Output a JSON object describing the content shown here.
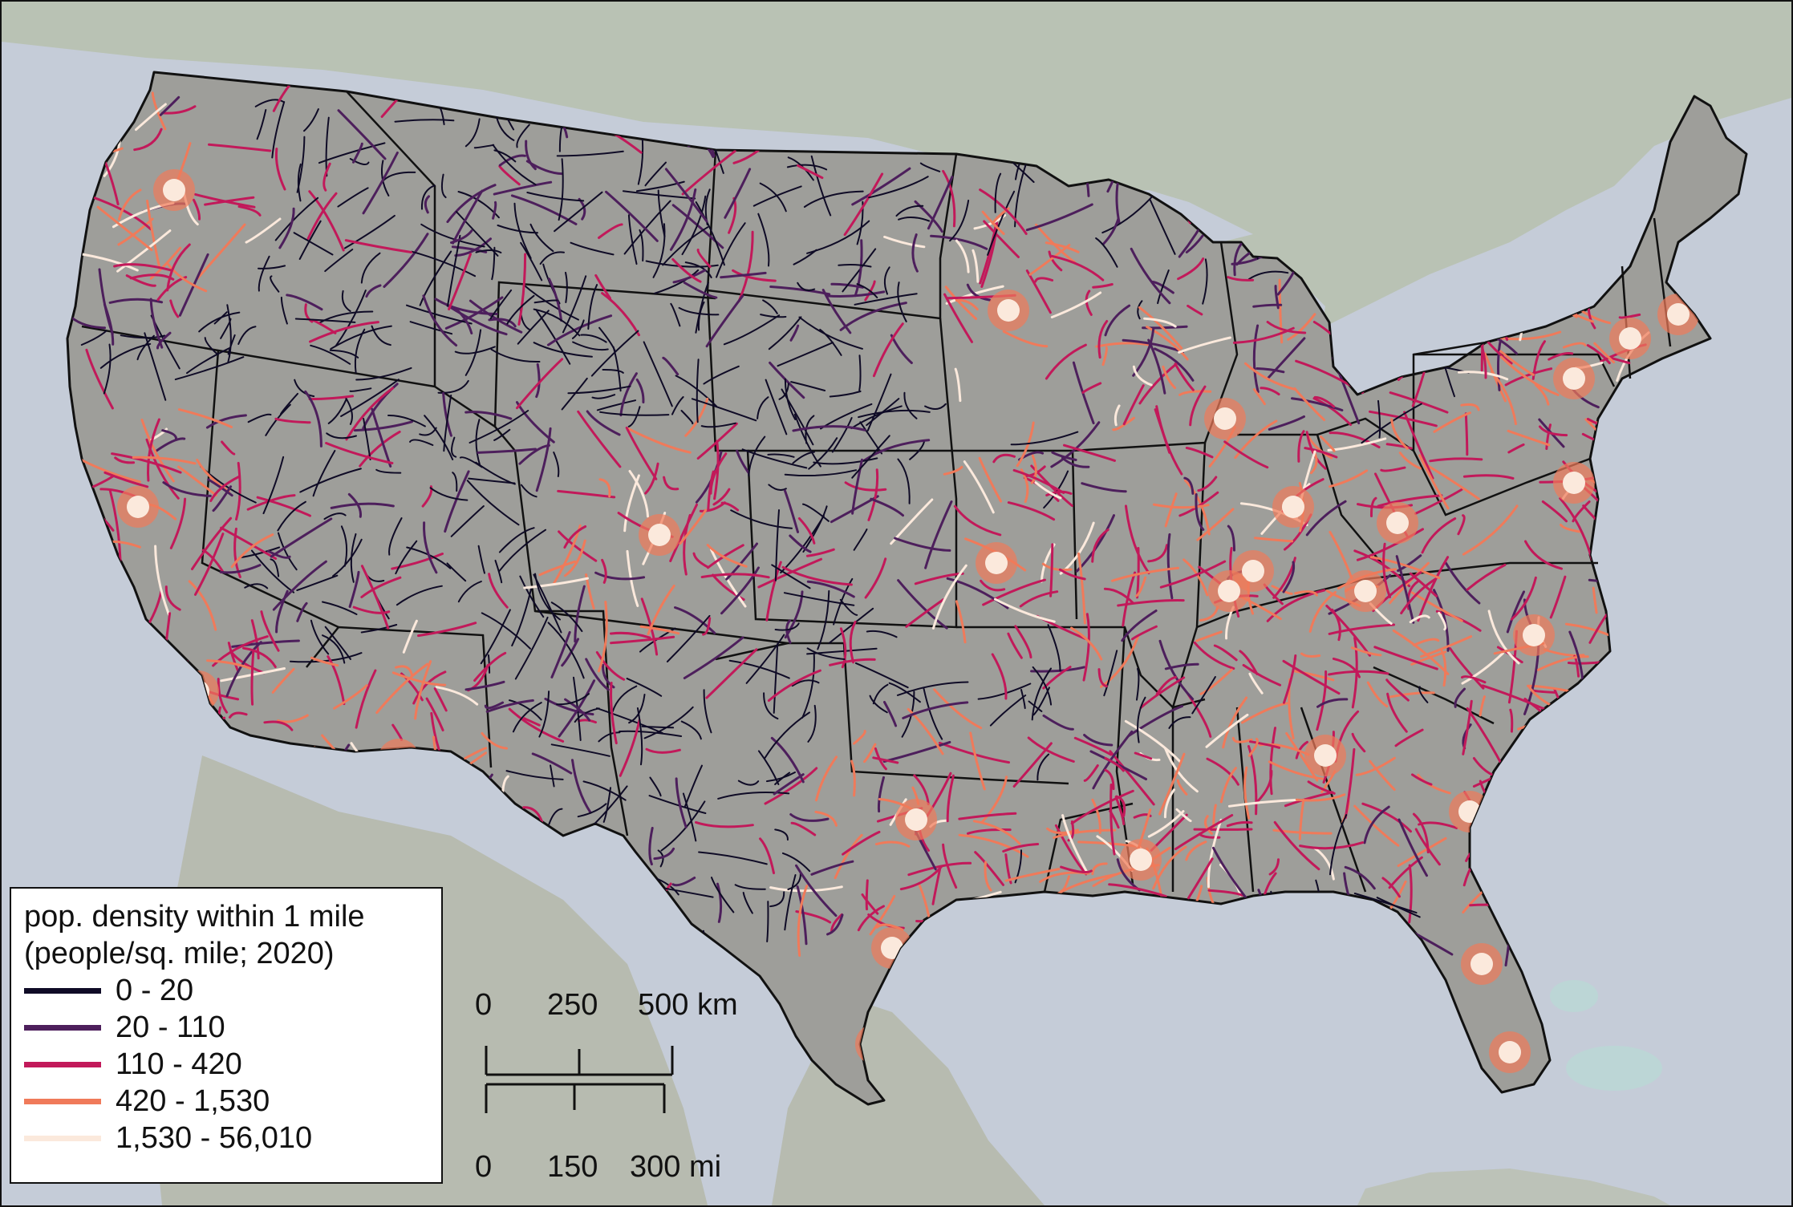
{
  "legend": {
    "title_line1": "pop. density within 1 mile",
    "title_line2": "(people/sq. mile; 2020)",
    "items": [
      {
        "label": "0 - 20",
        "color": "#0f0b26"
      },
      {
        "label": "20 - 110",
        "color": "#4d1f5c"
      },
      {
        "label": "110 - 420",
        "color": "#c2195a"
      },
      {
        "label": "420 - 1,530",
        "color": "#f07a5a"
      },
      {
        "label": "1,530 - 56,010",
        "color": "#fbe9dc"
      }
    ]
  },
  "scale_bar": {
    "km": {
      "ticks": [
        "0",
        "250",
        "500 km"
      ]
    },
    "mi": {
      "ticks": [
        "0",
        "150",
        "300 mi"
      ]
    }
  },
  "colors": {
    "ocean": "#c5ccd8",
    "land_outside": "#b9c0b4",
    "us_fill": "#9c9c98",
    "border": "#111111"
  }
}
